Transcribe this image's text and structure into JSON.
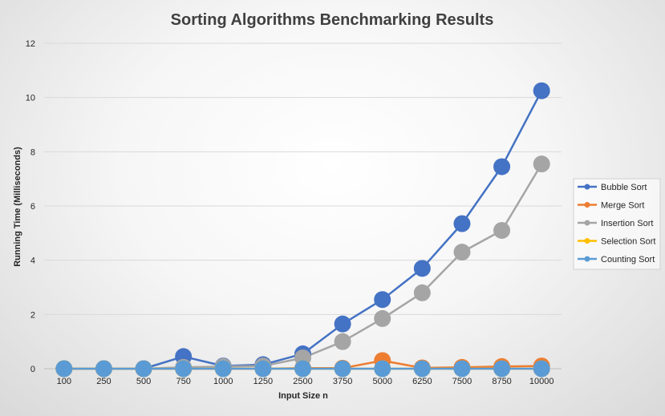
{
  "chart_data": {
    "type": "line",
    "title": "Sorting Algorithms Benchmarking Results",
    "xlabel": "Input Size n",
    "ylabel": "Running Time (Milliseconds)",
    "categories": [
      "100",
      "250",
      "500",
      "750",
      "1000",
      "1250",
      "2500",
      "3750",
      "5000",
      "6250",
      "7500",
      "8750",
      "10000"
    ],
    "ylim": [
      0,
      12
    ],
    "yticks": [
      "0",
      "2",
      "4",
      "6",
      "8",
      "10",
      "12"
    ],
    "grid": true,
    "legend_position": "right",
    "series": [
      {
        "name": "Bubble Sort",
        "color": "#4472C4",
        "values": [
          0,
          0,
          0,
          0.45,
          0.1,
          0.15,
          0.55,
          1.65,
          2.55,
          3.7,
          5.35,
          7.45,
          10.25
        ]
      },
      {
        "name": "Merge Sort",
        "color": "#ED7D31",
        "values": [
          0,
          0,
          0,
          0,
          0,
          0,
          0.02,
          0.02,
          0.3,
          0.03,
          0.05,
          0.08,
          0.1
        ]
      },
      {
        "name": "Insertion Sort",
        "color": "#A5A5A5",
        "values": [
          0,
          0,
          0,
          0.05,
          0.08,
          0.1,
          0.4,
          1.0,
          1.85,
          2.8,
          4.3,
          5.1,
          7.55
        ]
      },
      {
        "name": "Selection Sort",
        "color": "#FFC000",
        "values": [
          0,
          0,
          0,
          0,
          0,
          0,
          0,
          0,
          0,
          0,
          0,
          0,
          0
        ]
      },
      {
        "name": "Counting Sort",
        "color": "#5B9BD5",
        "values": [
          0,
          0,
          0,
          0,
          0,
          0,
          0,
          0,
          0,
          0,
          0,
          0,
          0
        ]
      }
    ]
  }
}
